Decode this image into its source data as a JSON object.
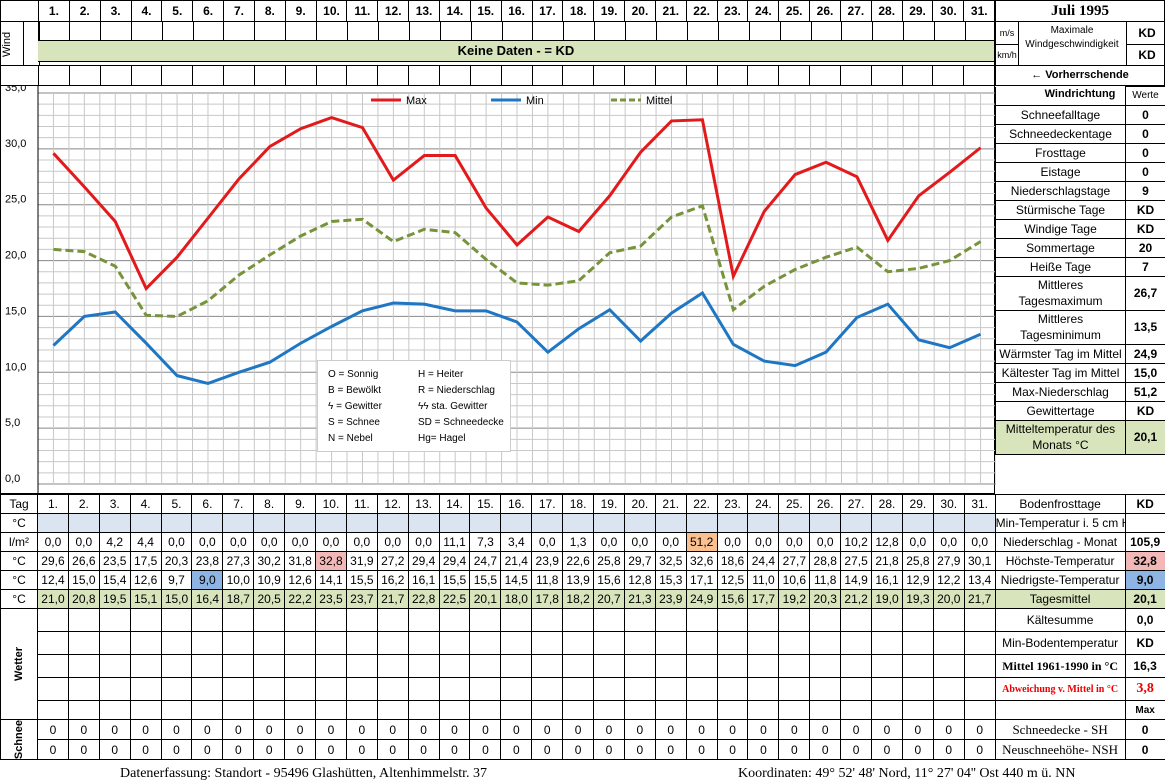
{
  "header": {
    "title": "Juli 1995",
    "unit_ms": "m/s",
    "unit_kmh": "km/h",
    "max_wind_label": "Maximale Windgeschwindigkeit",
    "max_wind_ms": "KD",
    "max_wind_kmh": "KD",
    "wind_label": "Wind",
    "no_data": "Keine Daten -  = KD",
    "prevailing_label": "← Vorherrschende Windrichtung"
  },
  "days": [
    "1.",
    "2.",
    "3.",
    "4.",
    "5.",
    "6.",
    "7.",
    "8.",
    "9.",
    "10.",
    "11.",
    "12.",
    "13.",
    "14.",
    "15.",
    "16.",
    "17.",
    "18.",
    "19.",
    "20.",
    "21.",
    "22.",
    "23.",
    "24.",
    "25.",
    "26.",
    "27.",
    "28.",
    "29.",
    "30.",
    "31."
  ],
  "chart_data": {
    "type": "line",
    "x": [
      1,
      2,
      3,
      4,
      5,
      6,
      7,
      8,
      9,
      10,
      11,
      12,
      13,
      14,
      15,
      16,
      17,
      18,
      19,
      20,
      21,
      22,
      23,
      24,
      25,
      26,
      27,
      28,
      29,
      30,
      31
    ],
    "ylim": [
      0,
      35
    ],
    "yticks": [
      "0,0",
      "5,0",
      "10,0",
      "15,0",
      "20,0",
      "25,0",
      "30,0",
      "35,0"
    ],
    "legend_position": "top",
    "series": [
      {
        "name": "Max",
        "color": "#e31a1c",
        "values": [
          29.6,
          26.6,
          23.5,
          17.5,
          20.3,
          23.8,
          27.3,
          30.2,
          31.8,
          32.8,
          31.9,
          27.2,
          29.4,
          29.4,
          24.7,
          21.4,
          23.9,
          22.6,
          25.8,
          29.7,
          32.5,
          32.6,
          18.6,
          24.4,
          27.7,
          28.8,
          27.5,
          21.8,
          25.8,
          27.9,
          30.1
        ]
      },
      {
        "name": "Min",
        "color": "#1f77c4",
        "values": [
          12.4,
          15.0,
          15.4,
          12.6,
          9.7,
          9.0,
          10.0,
          10.9,
          12.6,
          14.1,
          15.5,
          16.2,
          16.1,
          15.5,
          15.5,
          14.5,
          11.8,
          13.9,
          15.6,
          12.8,
          15.3,
          17.1,
          12.5,
          11.0,
          10.6,
          11.8,
          14.9,
          16.1,
          12.9,
          12.2,
          13.4
        ]
      },
      {
        "name": "Mittel",
        "color": "#77933c",
        "dashed": true,
        "values": [
          21.0,
          20.8,
          19.5,
          15.1,
          15.0,
          16.4,
          18.7,
          20.5,
          22.2,
          23.5,
          23.7,
          21.7,
          22.8,
          22.5,
          20.1,
          18.0,
          17.8,
          18.2,
          20.7,
          21.3,
          23.9,
          24.9,
          15.6,
          17.7,
          19.2,
          20.3,
          21.2,
          19.0,
          19.3,
          20.0,
          21.7
        ]
      }
    ]
  },
  "legend_box": [
    [
      "O = Sonnig",
      "H = Heiter"
    ],
    [
      "B = Bewölkt",
      "R = Niederschlag"
    ],
    [
      "ϟ = Gewitter",
      "ϟϟ sta. Gewitter"
    ],
    [
      "S = Schnee",
      "SD = Schneedecke"
    ],
    [
      "N = Nebel",
      "Hg= Hagel"
    ]
  ],
  "side": {
    "werte_label": "Werte",
    "rows": [
      {
        "label": "Schneefalltage",
        "value": "0"
      },
      {
        "label": "Schneedeckentage",
        "value": "0"
      },
      {
        "label": "Frosttage",
        "value": "0"
      },
      {
        "label": "Eistage",
        "value": "0"
      },
      {
        "label": "Niederschlagstage",
        "value": "9"
      },
      {
        "label": "Stürmische Tage",
        "value": "KD"
      },
      {
        "label": "Windige Tage",
        "value": "KD"
      },
      {
        "label": "Sommertage",
        "value": "20"
      },
      {
        "label": "Heiße Tage",
        "value": "7"
      },
      {
        "label": "Mittleres Tagesmaximum",
        "value": "26,7"
      },
      {
        "label": "Mittleres Tagesminimum",
        "value": "13,5"
      },
      {
        "label": "Wärmster Tag im Mittel",
        "value": "24,9"
      },
      {
        "label": "Kältester Tag im Mittel",
        "value": "15,0"
      },
      {
        "label": "Max-Niederschlag",
        "value": "51,2"
      },
      {
        "label": "Gewittertage",
        "value": "KD"
      },
      {
        "label": "Mitteltemperatur des Monats °C",
        "value": "20,1"
      }
    ]
  },
  "table": {
    "tag_label": "Tag",
    "bodenfrost_label": "Bodenfrosttage",
    "bodenfrost_value": "KD",
    "rows": [
      {
        "unit": "°C",
        "label": "Min-Temperatur i. 5 cm Höhe",
        "value": "",
        "values": [
          "",
          "",
          "",
          "",
          "",
          "",
          "",
          "",
          "",
          "",
          "",
          "",
          "",
          "",
          "",
          "",
          "",
          "",
          "",
          "",
          "",
          "",
          "",
          "",
          "",
          "",
          "",
          "",
          "",
          "",
          ""
        ],
        "cls": "blue"
      },
      {
        "unit": "l/m²",
        "label": "Niederschlag - Monat",
        "value": "105,9",
        "values": [
          "0,0",
          "0,0",
          "4,2",
          "4,4",
          "0,0",
          "0,0",
          "0,0",
          "0,0",
          "0,0",
          "0,0",
          "0,0",
          "0,0",
          "0,0",
          "11,1",
          "7,3",
          "3,4",
          "0,0",
          "1,3",
          "0,0",
          "0,0",
          "0,0",
          "51,2",
          "0,0",
          "0,0",
          "0,0",
          "0,0",
          "10,2",
          "12,8",
          "0,0",
          "0,0",
          "0,0"
        ]
      },
      {
        "unit": "°C",
        "label": "Höchste-Temperatur",
        "value": "32,8",
        "values": [
          "29,6",
          "26,6",
          "23,5",
          "17,5",
          "20,3",
          "23,8",
          "27,3",
          "30,2",
          "31,8",
          "32,8",
          "31,9",
          "27,2",
          "29,4",
          "29,4",
          "24,7",
          "21,4",
          "23,9",
          "22,6",
          "25,8",
          "29,7",
          "32,5",
          "32,6",
          "18,6",
          "24,4",
          "27,7",
          "28,8",
          "27,5",
          "21,8",
          "25,8",
          "27,9",
          "30,1"
        ]
      },
      {
        "unit": "°C",
        "label": "Niedrigste-Temperatur",
        "value": "9,0",
        "values": [
          "12,4",
          "15,0",
          "15,4",
          "12,6",
          "9,7",
          "9,0",
          "10,0",
          "10,9",
          "12,6",
          "14,1",
          "15,5",
          "16,2",
          "16,1",
          "15,5",
          "15,5",
          "14,5",
          "11,8",
          "13,9",
          "15,6",
          "12,8",
          "15,3",
          "17,1",
          "12,5",
          "11,0",
          "10,6",
          "11,8",
          "14,9",
          "16,1",
          "12,9",
          "12,2",
          "13,4"
        ]
      },
      {
        "unit": "°C",
        "label": "Tagesmittel",
        "value": "20,1",
        "values": [
          "21,0",
          "20,8",
          "19,5",
          "15,1",
          "15,0",
          "16,4",
          "18,7",
          "20,5",
          "22,2",
          "23,5",
          "23,7",
          "21,7",
          "22,8",
          "22,5",
          "20,1",
          "18,0",
          "17,8",
          "18,2",
          "20,7",
          "21,3",
          "23,9",
          "24,9",
          "15,6",
          "17,7",
          "19,2",
          "20,3",
          "21,2",
          "19,0",
          "19,3",
          "20,0",
          "21,7"
        ],
        "cls": "green"
      }
    ],
    "wetter_label": "Wetter",
    "wetter_side": [
      {
        "label": "Kältesumme",
        "value": "0,0"
      },
      {
        "label": "Min-Bodentemperatur",
        "value": "KD"
      },
      {
        "label": "Mittel 1961-1990 in °C",
        "value": "16,3"
      },
      {
        "label": "Abweichung v. Mittel in °C",
        "value": "3,8"
      },
      {
        "label": "",
        "value": "Max"
      }
    ],
    "schnee_label": "Schnee",
    "schnee_rows": [
      {
        "label": "Schneedecke -  SH",
        "value": "0",
        "values": [
          "0",
          "0",
          "0",
          "0",
          "0",
          "0",
          "0",
          "0",
          "0",
          "0",
          "0",
          "0",
          "0",
          "0",
          "0",
          "0",
          "0",
          "0",
          "0",
          "0",
          "0",
          "0",
          "0",
          "0",
          "0",
          "0",
          "0",
          "0",
          "0",
          "0",
          "0"
        ]
      },
      {
        "label": "Neuschneehöhe- NSH",
        "value": "0",
        "values": [
          "0",
          "0",
          "0",
          "0",
          "0",
          "0",
          "0",
          "0",
          "0",
          "0",
          "0",
          "0",
          "0",
          "0",
          "0",
          "0",
          "0",
          "0",
          "0",
          "0",
          "0",
          "0",
          "0",
          "0",
          "0",
          "0",
          "0",
          "0",
          "0",
          "0",
          "0"
        ]
      }
    ]
  },
  "footer": {
    "left": "Datenerfassung:  Standort -   95496  Glashütten, Altenhimmelstr. 37",
    "right": "Koordinaten:  49° 52' 48' Nord,  11° 27' 04'' Ost   440 m ü. NN"
  }
}
